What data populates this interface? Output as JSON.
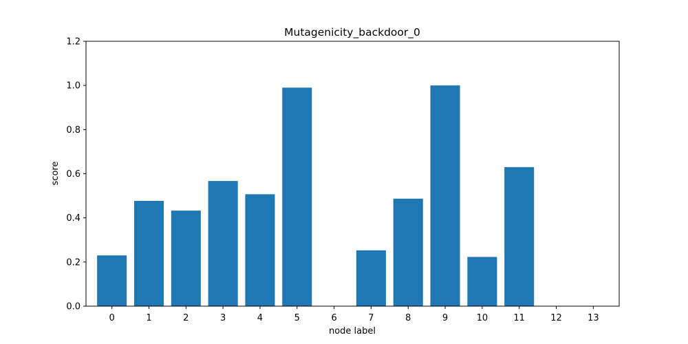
{
  "chart_data": {
    "type": "bar",
    "title": "Mutagenicity_backdoor_0",
    "xlabel": "node label",
    "ylabel": "score",
    "categories": [
      "0",
      "1",
      "2",
      "3",
      "4",
      "5",
      "6",
      "7",
      "8",
      "9",
      "10",
      "11",
      "12",
      "13"
    ],
    "values": [
      0.23,
      0.477,
      0.433,
      0.567,
      0.507,
      0.99,
      0.0,
      0.253,
      0.487,
      1.0,
      0.223,
      0.63,
      0.0,
      0.0
    ],
    "ylim": [
      0,
      1.2
    ],
    "yticks": [
      "0.0",
      "0.2",
      "0.4",
      "0.6",
      "0.8",
      "1.0",
      "1.2"
    ],
    "grid": false,
    "bar_color": "#1f77b4"
  }
}
